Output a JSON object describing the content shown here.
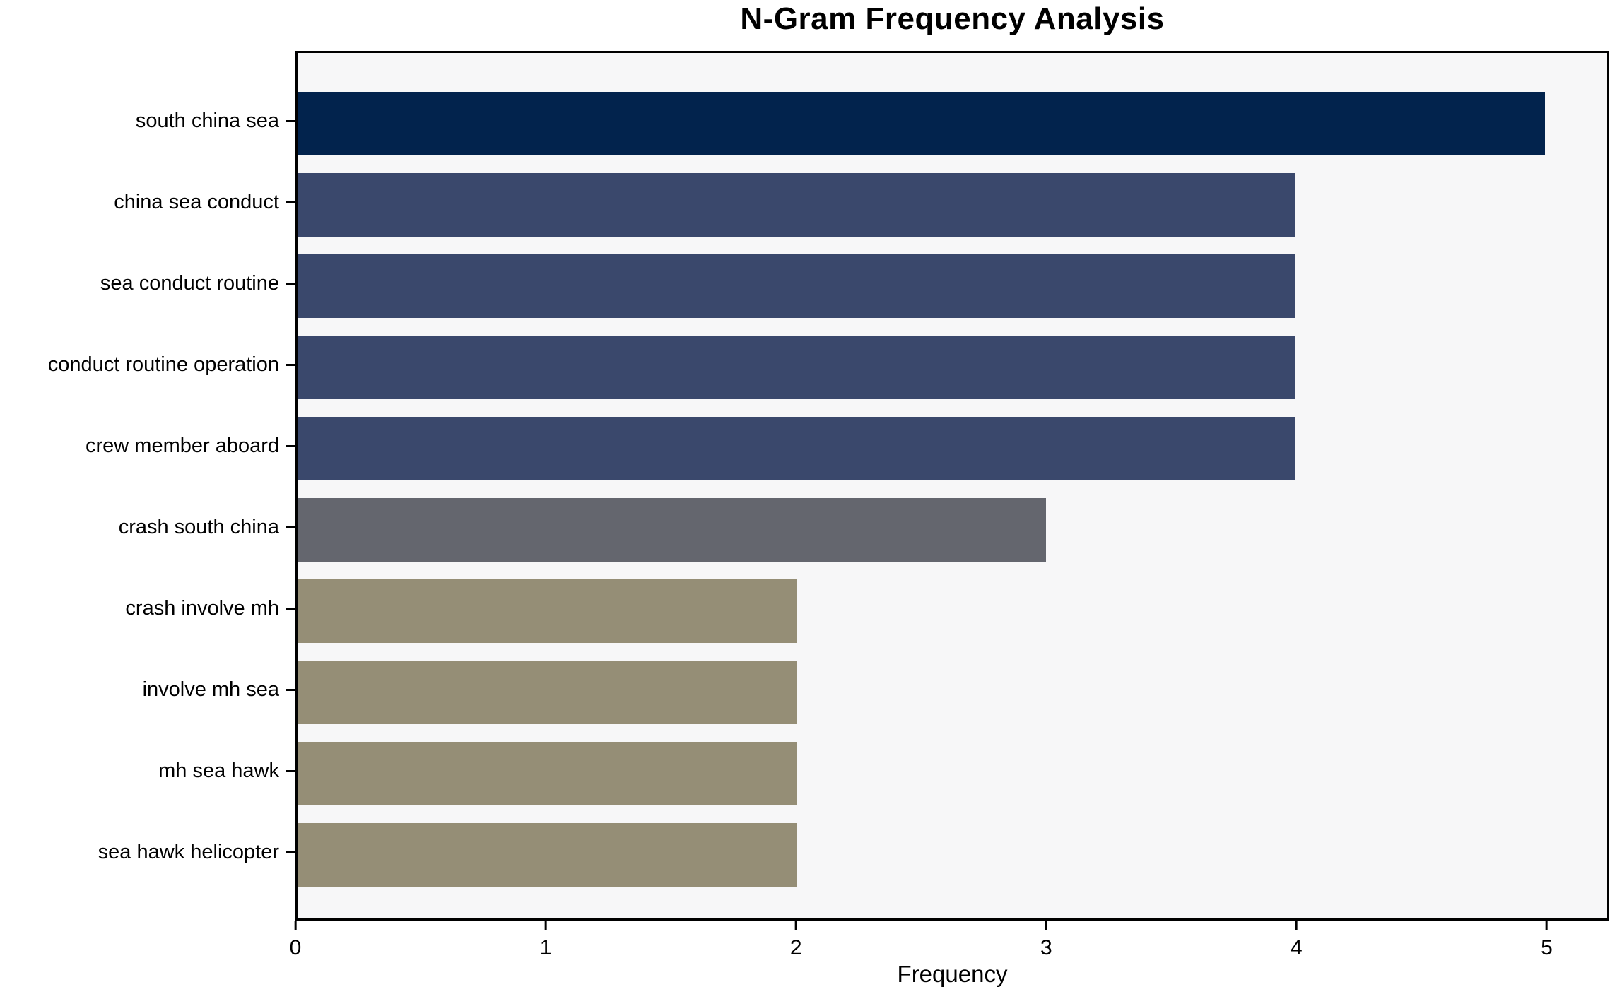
{
  "chart_data": {
    "type": "bar",
    "orientation": "horizontal",
    "title": "N-Gram Frequency Analysis",
    "xlabel": "Frequency",
    "ylabel": "",
    "categories": [
      "south china sea",
      "china sea conduct",
      "sea conduct routine",
      "conduct routine operation",
      "crew member aboard",
      "crash south china",
      "crash involve mh",
      "involve mh sea",
      "mh sea hawk",
      "sea hawk helicopter"
    ],
    "values": [
      5,
      4,
      4,
      4,
      4,
      3,
      2,
      2,
      2,
      2
    ],
    "bar_colors": [
      "#02234d",
      "#3a486c",
      "#3a486c",
      "#3a486c",
      "#3a486c",
      "#64666e",
      "#958e76",
      "#958e76",
      "#958e76",
      "#958e76"
    ],
    "xlim": [
      0,
      5.25
    ],
    "xticks": [
      0,
      1,
      2,
      3,
      4,
      5
    ],
    "grid": false,
    "legend": null,
    "plot_background": "#f7f7f8",
    "figure_background": "#ffffff",
    "axis_color": "#000000"
  }
}
